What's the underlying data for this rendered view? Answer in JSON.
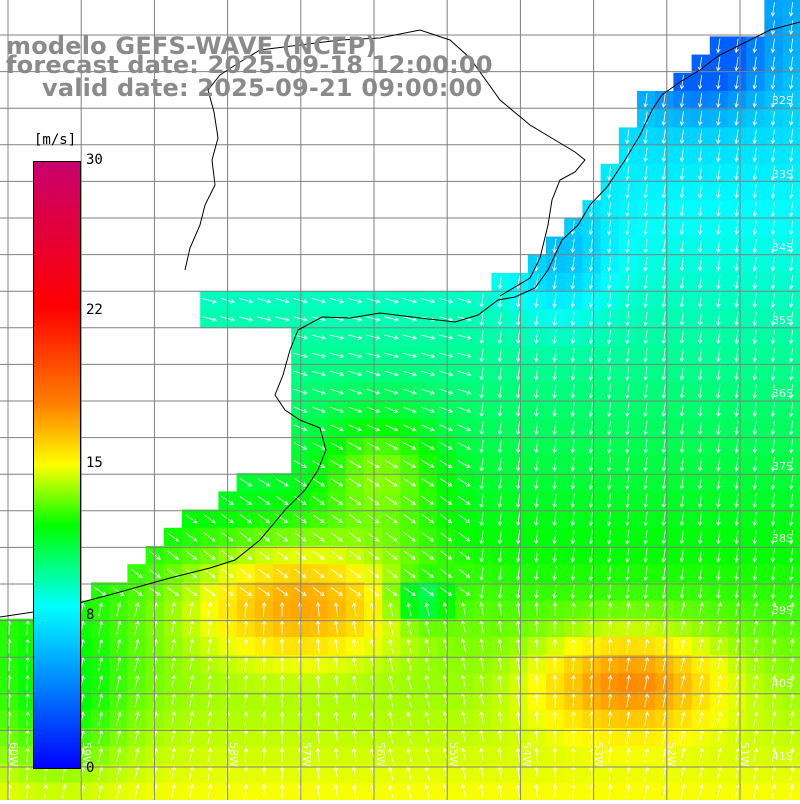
{
  "header": {
    "line1": "modelo GEFS-WAVE (NCEP)",
    "line2": "forecast date: 2025-09-18 12:00:00",
    "line3": "valid date: 2025-09-21 09:00:00"
  },
  "colorbar": {
    "units": "[m/s]",
    "ticks": [
      "30",
      "22",
      "15",
      "8",
      "0"
    ],
    "min": 0,
    "max": 30,
    "colors": [
      "#0000ff",
      "#00ffff",
      "#00ff00",
      "#ffff00",
      "#ff8000",
      "#ff0000",
      "#c8006e"
    ]
  },
  "axes": {
    "lat_labels": [
      "32S",
      "33S",
      "34S",
      "35S",
      "36S",
      "37S",
      "38S",
      "39S",
      "40S",
      "41S"
    ],
    "lon_labels": [
      "60W",
      "59W",
      "58W",
      "57W",
      "56W",
      "55W",
      "54W",
      "53W",
      "52W",
      "51W"
    ]
  },
  "map": {
    "region": "Uruguay / Rio de la Plata coast",
    "land_color": "#ffffff",
    "grid_color": "#808080",
    "coastline_color": "#000000",
    "arrow_color": "#ffffff"
  }
}
